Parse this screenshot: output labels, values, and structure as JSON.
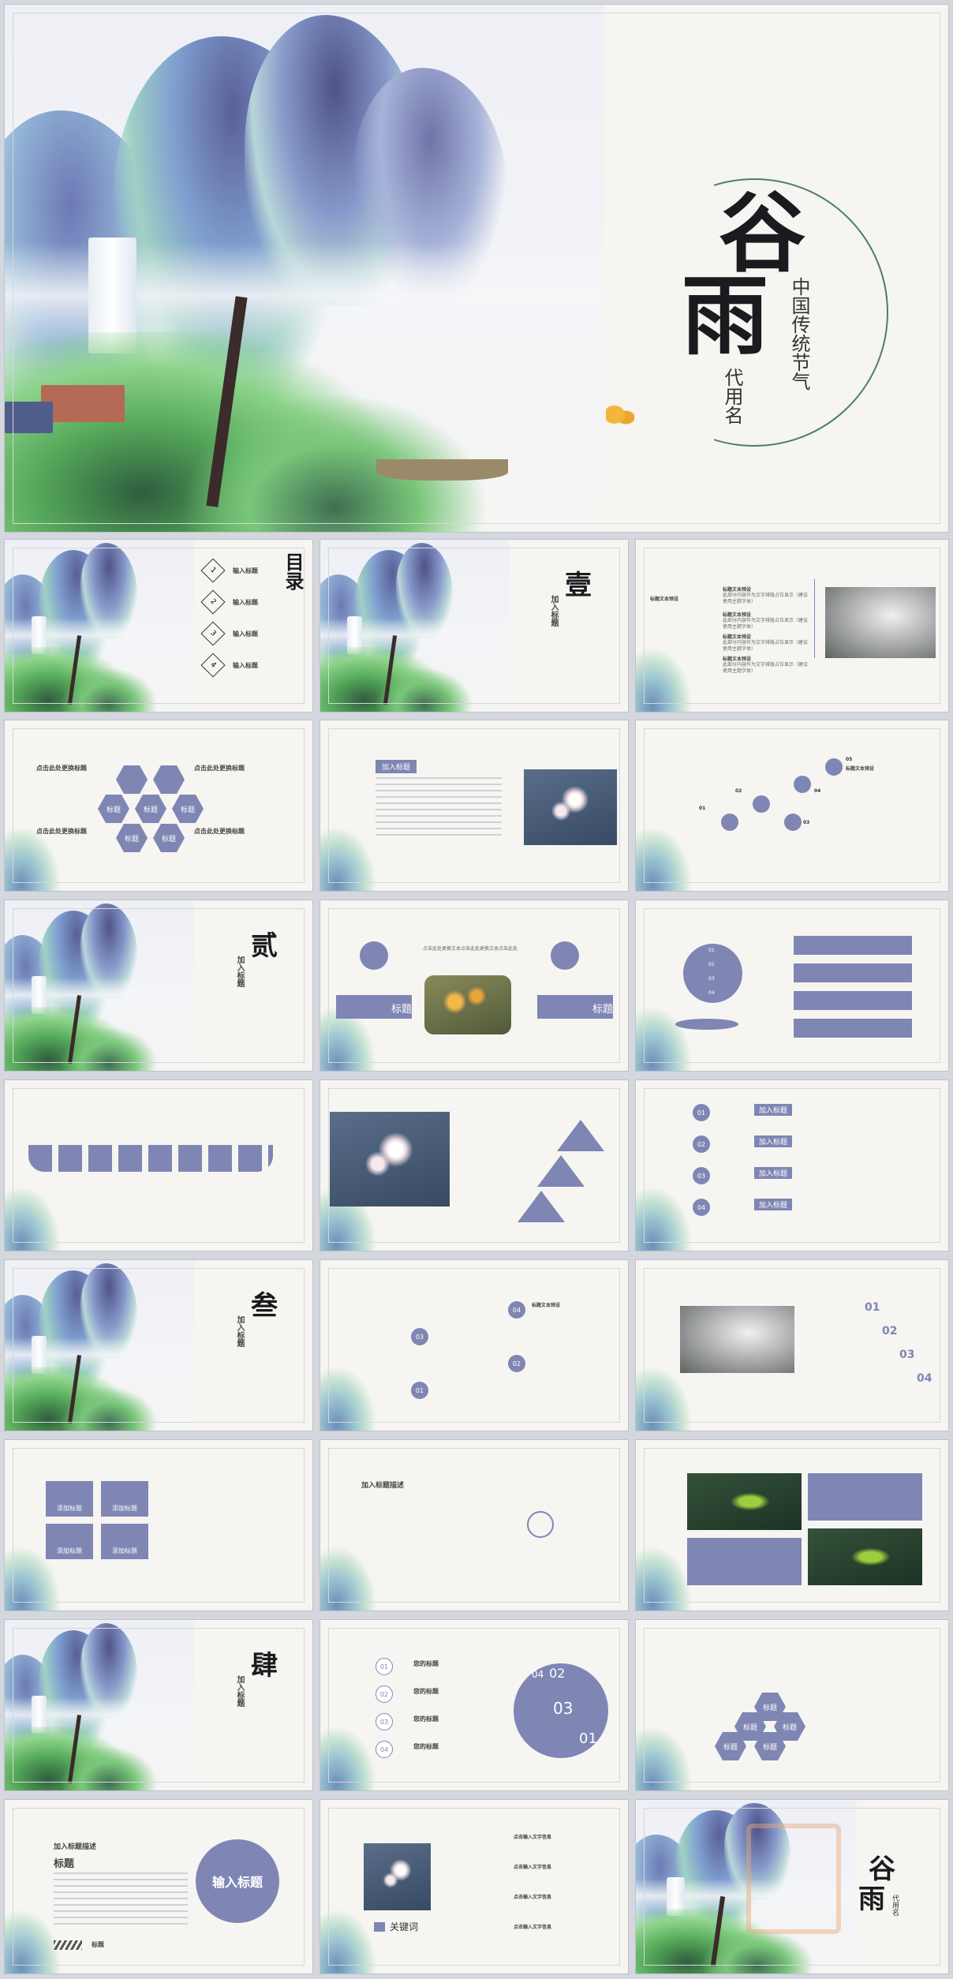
{
  "cover": {
    "title_char_1": "谷",
    "title_char_2": "雨",
    "subtitle": "中国传统节气",
    "byline": "代用名"
  },
  "toc": {
    "heading": "目录",
    "items": [
      {
        "num": "1",
        "label": "输入标题"
      },
      {
        "num": "2",
        "label": "输入标题"
      },
      {
        "num": "3",
        "label": "输入标题"
      },
      {
        "num": "4",
        "label": "输入标题"
      }
    ]
  },
  "sections": [
    {
      "num": "壹",
      "label": "加入标题"
    },
    {
      "num": "贰",
      "label": "加入标题"
    },
    {
      "num": "叁",
      "label": "加入标题"
    },
    {
      "num": "肆",
      "label": "加入标题"
    }
  ],
  "slide_timeline": {
    "items": [
      {
        "title": "标题文本预设",
        "body": "此部分内容作为文字排版占位显示（建议使用主题字体）"
      },
      {
        "title": "标题文本预设",
        "body": "此部分内容作为文字排版占位显示（建议使用主题字体）"
      },
      {
        "title": "标题文本预设",
        "body": "此部分内容作为文字排版占位显示（建议使用主题字体）"
      },
      {
        "title": "标题文本预设",
        "body": "此部分内容作为文字排版占位显示（建议使用主题字体）"
      }
    ],
    "left_title": "标题文本预设"
  },
  "slide_hex": {
    "labels": [
      "点击此处更换标题",
      "点击此处更换标题",
      "点击此处更换标题",
      "点击此处更换标题"
    ],
    "hex": [
      "标题",
      "标题",
      "标题",
      "标题",
      "标题"
    ]
  },
  "slide_text_photo": {
    "heading": "加入标题"
  },
  "slide_steps": {
    "nums": [
      "01",
      "02",
      "03",
      "04",
      "05"
    ],
    "title": "标题文本预设"
  },
  "slide_icons": {
    "label_left": "标题",
    "label_right": "标题",
    "body": "点击此处更换文本点击此处更换文本点击此处"
  },
  "slide_globe": {
    "nums": [
      "01",
      "02",
      "03",
      "04"
    ]
  },
  "slide_tabs": {
    "labels": [
      "加入标题",
      "加入标题",
      "加入标题",
      "加入标题"
    ],
    "nums": [
      "01",
      "02",
      "03",
      "04"
    ]
  },
  "slide_flow": {
    "nums": [
      "04",
      "03",
      "02",
      "01"
    ],
    "title": "标题文本预设"
  },
  "slide_arrows": {
    "nums": [
      "01",
      "02",
      "03",
      "04"
    ]
  },
  "slide_grid": {
    "labels": [
      "添加标题",
      "添加标题",
      "添加标题",
      "添加标题"
    ],
    "nums": [
      "1",
      "2",
      "3",
      "4"
    ]
  },
  "slide_diagram": {
    "heading": "加入标题描述"
  },
  "slide_rings": {
    "nums": [
      "01",
      "02",
      "03",
      "04"
    ],
    "titles": [
      "您的标题",
      "您的标题",
      "您的标题",
      "您的标题"
    ],
    "big": [
      "02",
      "03",
      "04",
      "01"
    ]
  },
  "slide_hex2": {
    "hex": [
      "标题",
      "标题",
      "标题",
      "标题",
      "标题"
    ]
  },
  "slide_last_text": {
    "heading": "加入标题描述",
    "sub": "标题",
    "circle": "输入标题",
    "foot": "标题"
  },
  "slide_keywords": {
    "label": "关键词",
    "items": [
      "点击输入文字信息",
      "点击输入文字信息",
      "点击输入文字信息",
      "点击输入文字信息"
    ]
  },
  "closing": {
    "title_char_1": "谷",
    "title_char_2": "雨",
    "byline": "代用名"
  }
}
